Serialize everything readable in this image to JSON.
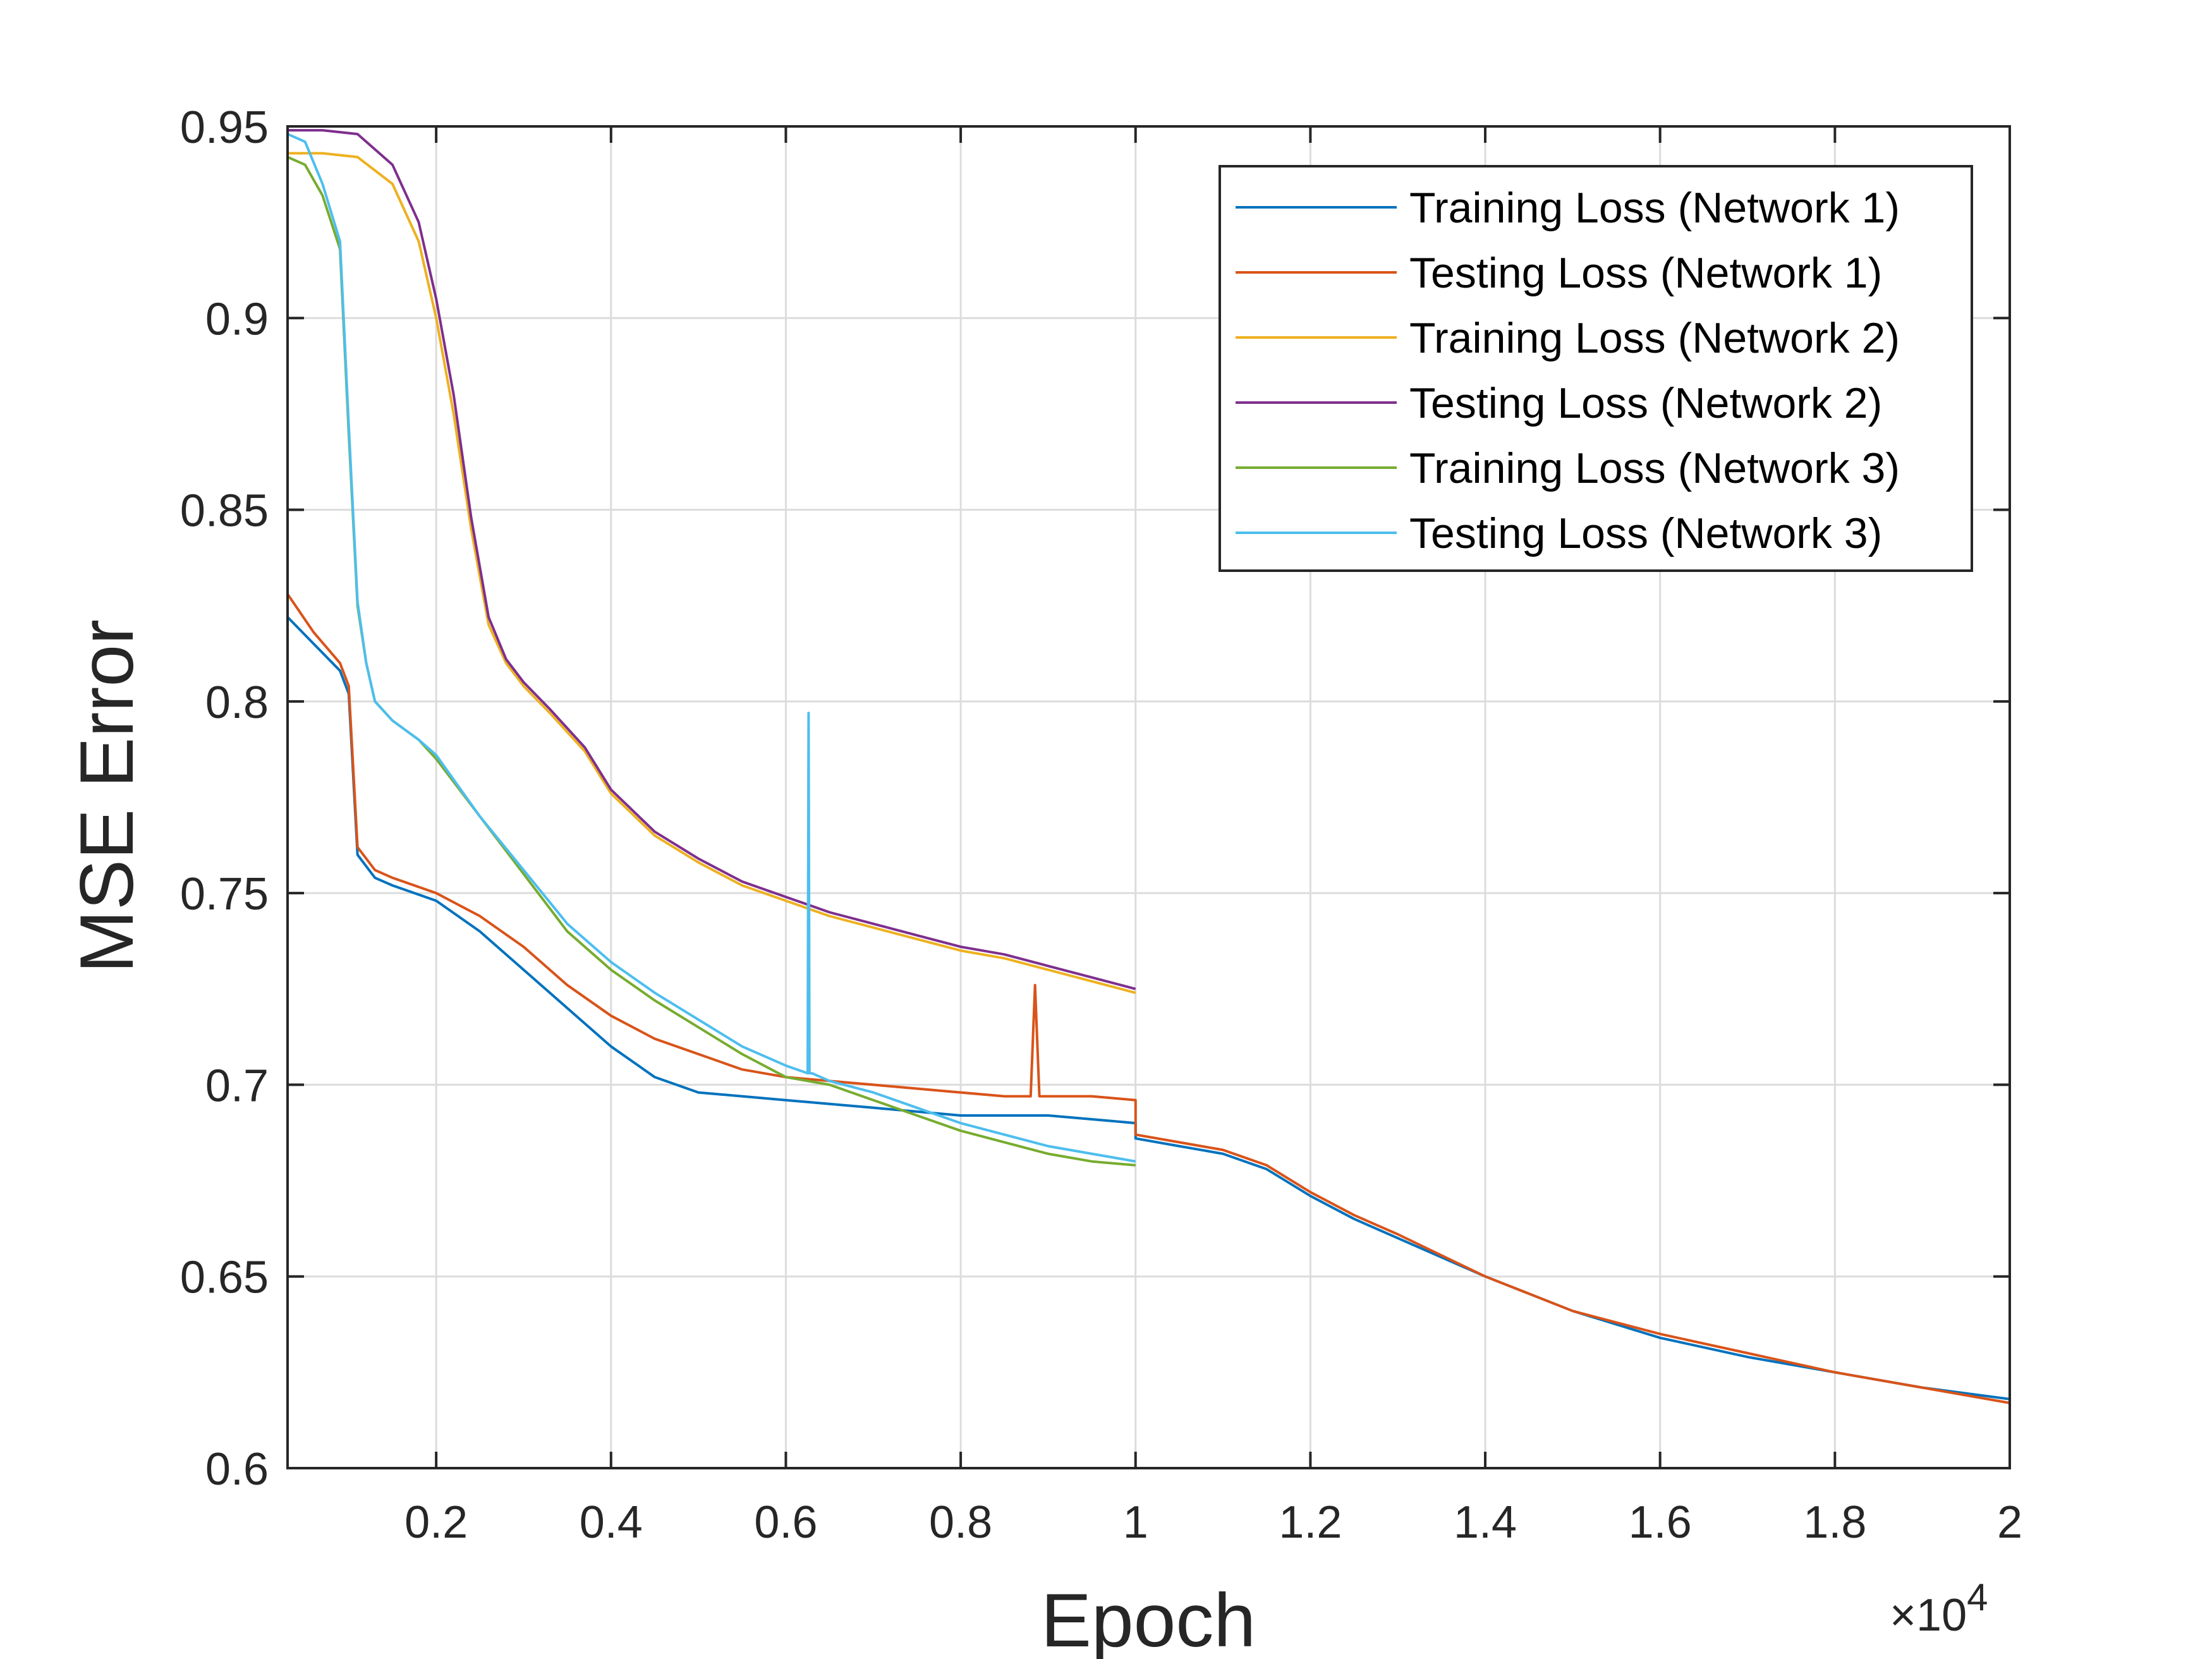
{
  "chart_data": {
    "type": "line",
    "xlabel": "Epoch",
    "ylabel": "MSE Error",
    "x_exponent_label": "×10",
    "x_exponent_power": "4",
    "xlim": [
      300,
      20000
    ],
    "ylim": [
      0.6,
      0.95
    ],
    "grid": true,
    "legend_position": "top-right",
    "xticks": [
      2000,
      4000,
      6000,
      8000,
      10000,
      12000,
      14000,
      16000,
      18000,
      20000
    ],
    "xtick_labels": [
      "0.2",
      "0.4",
      "0.6",
      "0.8",
      "1",
      "1.2",
      "1.4",
      "1.6",
      "1.8",
      "2"
    ],
    "yticks": [
      0.6,
      0.65,
      0.7,
      0.75,
      0.8,
      0.85,
      0.9,
      0.95
    ],
    "ytick_labels": [
      "0.6",
      "0.65",
      "0.7",
      "0.75",
      "0.8",
      "0.85",
      "0.9",
      "0.95"
    ],
    "series": [
      {
        "name": "Training Loss (Network 1)",
        "color": "#0072BD",
        "x": [
          300,
          600,
          900,
          1000,
          1100,
          1300,
          1500,
          2000,
          2500,
          3000,
          3500,
          4000,
          4500,
          5000,
          5500,
          6000,
          6500,
          7000,
          7500,
          8000,
          8500,
          9000,
          9500,
          10000,
          10000,
          10500,
          11000,
          11500,
          12000,
          12500,
          13000,
          14000,
          15000,
          16000,
          17000,
          18000,
          19000,
          20000
        ],
        "y": [
          0.822,
          0.815,
          0.808,
          0.802,
          0.76,
          0.754,
          0.752,
          0.748,
          0.74,
          0.73,
          0.72,
          0.71,
          0.702,
          0.698,
          0.697,
          0.696,
          0.695,
          0.694,
          0.693,
          0.692,
          0.692,
          0.692,
          0.691,
          0.69,
          0.686,
          0.684,
          0.682,
          0.678,
          0.671,
          0.665,
          0.66,
          0.65,
          0.641,
          0.634,
          0.629,
          0.625,
          0.621,
          0.618
        ]
      },
      {
        "name": "Testing Loss (Network 1)",
        "color": "#D95319",
        "x": [
          300,
          600,
          900,
          1000,
          1100,
          1300,
          1500,
          2000,
          2500,
          3000,
          3500,
          4000,
          4500,
          5000,
          5500,
          6000,
          6500,
          7000,
          7500,
          8000,
          8500,
          8800,
          8850,
          8900,
          9000,
          9500,
          10000,
          10000,
          10500,
          11000,
          11500,
          12000,
          12500,
          13000,
          14000,
          15000,
          16000,
          17000,
          18000,
          19000,
          20000
        ],
        "y": [
          0.828,
          0.818,
          0.81,
          0.804,
          0.762,
          0.756,
          0.754,
          0.75,
          0.744,
          0.736,
          0.726,
          0.718,
          0.712,
          0.708,
          0.704,
          0.702,
          0.701,
          0.7,
          0.699,
          0.698,
          0.697,
          0.697,
          0.726,
          0.697,
          0.697,
          0.697,
          0.696,
          0.687,
          0.685,
          0.683,
          0.679,
          0.672,
          0.666,
          0.661,
          0.65,
          0.641,
          0.635,
          0.63,
          0.625,
          0.621,
          0.617
        ]
      },
      {
        "name": "Training Loss (Network 2)",
        "color": "#EDB120",
        "x": [
          300,
          700,
          1100,
          1500,
          1800,
          2000,
          2200,
          2400,
          2600,
          2800,
          3000,
          3300,
          3700,
          4000,
          4500,
          5000,
          5500,
          6000,
          6500,
          7000,
          7500,
          8000,
          8500,
          9000,
          9500,
          10000
        ],
        "y": [
          0.943,
          0.943,
          0.942,
          0.935,
          0.92,
          0.9,
          0.875,
          0.845,
          0.82,
          0.81,
          0.804,
          0.797,
          0.787,
          0.776,
          0.765,
          0.758,
          0.752,
          0.748,
          0.744,
          0.741,
          0.738,
          0.735,
          0.733,
          0.73,
          0.727,
          0.724
        ]
      },
      {
        "name": "Testing Loss (Network 2)",
        "color": "#7E2F8E",
        "x": [
          300,
          700,
          1100,
          1500,
          1800,
          2000,
          2200,
          2400,
          2600,
          2800,
          3000,
          3300,
          3700,
          4000,
          4500,
          5000,
          5500,
          6000,
          6500,
          7000,
          7500,
          8000,
          8500,
          9000,
          9500,
          10000
        ],
        "y": [
          0.949,
          0.949,
          0.948,
          0.94,
          0.925,
          0.905,
          0.88,
          0.848,
          0.822,
          0.811,
          0.805,
          0.798,
          0.788,
          0.777,
          0.766,
          0.759,
          0.753,
          0.749,
          0.745,
          0.742,
          0.739,
          0.736,
          0.734,
          0.731,
          0.728,
          0.725
        ]
      },
      {
        "name": "Training Loss (Network 3)",
        "color": "#77AC30",
        "x": [
          300,
          500,
          700,
          900,
          1000,
          1100,
          1200,
          1300,
          1500,
          1800,
          2000,
          2500,
          3000,
          3500,
          4000,
          4500,
          5000,
          5500,
          6000,
          6500,
          7000,
          7500,
          8000,
          8500,
          9000,
          9500,
          10000
        ],
        "y": [
          0.942,
          0.94,
          0.932,
          0.918,
          0.87,
          0.825,
          0.81,
          0.8,
          0.795,
          0.79,
          0.785,
          0.77,
          0.755,
          0.74,
          0.73,
          0.722,
          0.715,
          0.708,
          0.702,
          0.7,
          0.696,
          0.692,
          0.688,
          0.685,
          0.682,
          0.68,
          0.679
        ]
      },
      {
        "name": "Testing Loss (Network 3)",
        "color": "#4DBEEE",
        "x": [
          300,
          500,
          700,
          900,
          1000,
          1100,
          1200,
          1300,
          1500,
          1800,
          2000,
          2500,
          3000,
          3500,
          4000,
          4500,
          5000,
          5500,
          6000,
          6250,
          6260,
          6270,
          6300,
          6500,
          7000,
          7500,
          8000,
          8500,
          9000,
          9500,
          10000
        ],
        "y": [
          0.948,
          0.946,
          0.935,
          0.92,
          0.872,
          0.826,
          0.81,
          0.8,
          0.795,
          0.79,
          0.786,
          0.77,
          0.756,
          0.742,
          0.732,
          0.724,
          0.717,
          0.71,
          0.705,
          0.703,
          0.797,
          0.703,
          0.703,
          0.701,
          0.698,
          0.694,
          0.69,
          0.687,
          0.684,
          0.682,
          0.68
        ]
      }
    ]
  }
}
